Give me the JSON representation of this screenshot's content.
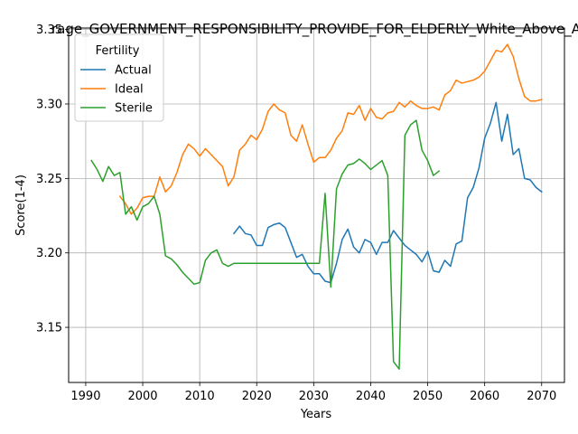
{
  "chart_data": {
    "type": "line",
    "title": "rage_GOVERNMENT_RESPONSIBILITY_PROVIDE_FOR_ELDERLY_White_Above_A",
    "xlabel": "Years",
    "ylabel": "Score(1-4)",
    "xlim": [
      1987,
      2074
    ],
    "ylim": [
      3.113,
      3.351
    ],
    "xticks": [
      1990,
      2000,
      2010,
      2020,
      2030,
      2040,
      2050,
      2060,
      2070
    ],
    "yticks": [
      3.15,
      3.2,
      3.25,
      3.3,
      3.35
    ],
    "ytick_labels": [
      "3.15",
      "3.20",
      "3.25",
      "3.30",
      "3.35"
    ],
    "grid": true,
    "legend": {
      "title": "Fertility",
      "placement": "top-left"
    },
    "series": [
      {
        "name": "Actual",
        "color": "#1f77b4",
        "points": [
          [
            2016,
            3.213
          ],
          [
            2017,
            3.218
          ],
          [
            2018,
            3.213
          ],
          [
            2019,
            3.212
          ],
          [
            2020,
            3.205
          ],
          [
            2021,
            3.205
          ],
          [
            2022,
            3.217
          ],
          [
            2023,
            3.219
          ],
          [
            2024,
            3.22
          ],
          [
            2025,
            3.217
          ],
          [
            2026,
            3.207
          ],
          [
            2027,
            3.197
          ],
          [
            2028,
            3.199
          ],
          [
            2029,
            3.191
          ],
          [
            2030,
            3.186
          ],
          [
            2031,
            3.186
          ],
          [
            2032,
            3.181
          ],
          [
            2033,
            3.18
          ],
          [
            2034,
            3.193
          ],
          [
            2035,
            3.209
          ],
          [
            2036,
            3.216
          ],
          [
            2037,
            3.204
          ],
          [
            2038,
            3.2
          ],
          [
            2039,
            3.209
          ],
          [
            2040,
            3.207
          ],
          [
            2041,
            3.199
          ],
          [
            2042,
            3.207
          ],
          [
            2043,
            3.207
          ],
          [
            2044,
            3.215
          ],
          [
            2045,
            3.21
          ],
          [
            2046,
            3.205
          ],
          [
            2047,
            3.202
          ],
          [
            2048,
            3.199
          ],
          [
            2049,
            3.194
          ],
          [
            2050,
            3.201
          ],
          [
            2051,
            3.188
          ],
          [
            2052,
            3.187
          ],
          [
            2053,
            3.195
          ],
          [
            2054,
            3.191
          ],
          [
            2055,
            3.206
          ],
          [
            2056,
            3.208
          ],
          [
            2057,
            3.237
          ],
          [
            2058,
            3.244
          ],
          [
            2059,
            3.257
          ],
          [
            2060,
            3.277
          ],
          [
            2061,
            3.287
          ],
          [
            2062,
            3.301
          ],
          [
            2063,
            3.275
          ],
          [
            2064,
            3.293
          ],
          [
            2065,
            3.266
          ],
          [
            2066,
            3.27
          ],
          [
            2067,
            3.25
          ],
          [
            2068,
            3.249
          ],
          [
            2069,
            3.244
          ],
          [
            2070,
            3.241
          ]
        ]
      },
      {
        "name": "Ideal",
        "color": "#ff7f0e",
        "points": [
          [
            1996,
            3.238
          ],
          [
            1997,
            3.233
          ],
          [
            1998,
            3.226
          ],
          [
            1999,
            3.23
          ],
          [
            2000,
            3.237
          ],
          [
            2001,
            3.238
          ],
          [
            2002,
            3.238
          ],
          [
            2003,
            3.251
          ],
          [
            2004,
            3.241
          ],
          [
            2005,
            3.245
          ],
          [
            2006,
            3.254
          ],
          [
            2007,
            3.266
          ],
          [
            2008,
            3.273
          ],
          [
            2009,
            3.27
          ],
          [
            2010,
            3.265
          ],
          [
            2011,
            3.27
          ],
          [
            2012,
            3.266
          ],
          [
            2013,
            3.262
          ],
          [
            2014,
            3.258
          ],
          [
            2015,
            3.245
          ],
          [
            2016,
            3.251
          ],
          [
            2017,
            3.269
          ],
          [
            2018,
            3.273
          ],
          [
            2019,
            3.279
          ],
          [
            2020,
            3.276
          ],
          [
            2021,
            3.283
          ],
          [
            2022,
            3.295
          ],
          [
            2023,
            3.3
          ],
          [
            2024,
            3.296
          ],
          [
            2025,
            3.294
          ],
          [
            2026,
            3.279
          ],
          [
            2027,
            3.275
          ],
          [
            2028,
            3.286
          ],
          [
            2029,
            3.273
          ],
          [
            2030,
            3.261
          ],
          [
            2031,
            3.264
          ],
          [
            2032,
            3.264
          ],
          [
            2033,
            3.269
          ],
          [
            2034,
            3.277
          ],
          [
            2035,
            3.282
          ],
          [
            2036,
            3.294
          ],
          [
            2037,
            3.293
          ],
          [
            2038,
            3.299
          ],
          [
            2039,
            3.289
          ],
          [
            2040,
            3.297
          ],
          [
            2041,
            3.291
          ],
          [
            2042,
            3.29
          ],
          [
            2043,
            3.294
          ],
          [
            2044,
            3.295
          ],
          [
            2045,
            3.301
          ],
          [
            2046,
            3.298
          ],
          [
            2047,
            3.302
          ],
          [
            2048,
            3.299
          ],
          [
            2049,
            3.297
          ],
          [
            2050,
            3.297
          ],
          [
            2051,
            3.298
          ],
          [
            2052,
            3.296
          ],
          [
            2053,
            3.306
          ],
          [
            2054,
            3.309
          ],
          [
            2055,
            3.316
          ],
          [
            2056,
            3.314
          ],
          [
            2057,
            3.315
          ],
          [
            2058,
            3.316
          ],
          [
            2059,
            3.318
          ],
          [
            2060,
            3.322
          ],
          [
            2061,
            3.329
          ],
          [
            2062,
            3.336
          ],
          [
            2063,
            3.335
          ],
          [
            2064,
            3.34
          ],
          [
            2065,
            3.332
          ],
          [
            2066,
            3.317
          ],
          [
            2067,
            3.305
          ],
          [
            2068,
            3.302
          ],
          [
            2069,
            3.302
          ],
          [
            2070,
            3.303
          ]
        ]
      },
      {
        "name": "Sterile",
        "color": "#2ca02c",
        "points": [
          [
            1991,
            3.262
          ],
          [
            1992,
            3.256
          ],
          [
            1993,
            3.248
          ],
          [
            1994,
            3.258
          ],
          [
            1995,
            3.252
          ],
          [
            1996,
            3.254
          ],
          [
            1997,
            3.226
          ],
          [
            1998,
            3.231
          ],
          [
            1999,
            3.222
          ],
          [
            2000,
            3.231
          ],
          [
            2001,
            3.233
          ],
          [
            2002,
            3.238
          ],
          [
            2003,
            3.226
          ],
          [
            2004,
            3.198
          ],
          [
            2005,
            3.196
          ],
          [
            2006,
            3.192
          ],
          [
            2007,
            3.187
          ],
          [
            2008,
            3.183
          ],
          [
            2009,
            3.179
          ],
          [
            2010,
            3.18
          ],
          [
            2011,
            3.195
          ],
          [
            2012,
            3.2
          ],
          [
            2013,
            3.202
          ],
          [
            2014,
            3.193
          ],
          [
            2015,
            3.191
          ],
          [
            2016,
            3.193
          ],
          [
            2017,
            3.193
          ],
          [
            2018,
            3.193
          ],
          [
            2019,
            3.193
          ],
          [
            2020,
            3.193
          ],
          [
            2021,
            3.193
          ],
          [
            2022,
            3.193
          ],
          [
            2023,
            3.193
          ],
          [
            2024,
            3.193
          ],
          [
            2025,
            3.193
          ],
          [
            2026,
            3.193
          ],
          [
            2027,
            3.193
          ],
          [
            2028,
            3.193
          ],
          [
            2029,
            3.193
          ],
          [
            2030,
            3.193
          ],
          [
            2031,
            3.193
          ],
          [
            2032,
            3.24
          ],
          [
            2033,
            3.177
          ],
          [
            2034,
            3.243
          ],
          [
            2035,
            3.253
          ],
          [
            2036,
            3.259
          ],
          [
            2037,
            3.26
          ],
          [
            2038,
            3.263
          ],
          [
            2039,
            3.26
          ],
          [
            2040,
            3.256
          ],
          [
            2041,
            3.259
          ],
          [
            2042,
            3.262
          ],
          [
            2043,
            3.252
          ],
          [
            2044,
            3.127
          ],
          [
            2045,
            3.122
          ],
          [
            2046,
            3.279
          ],
          [
            2047,
            3.286
          ],
          [
            2048,
            3.289
          ],
          [
            2049,
            3.269
          ],
          [
            2050,
            3.262
          ],
          [
            2051,
            3.252
          ],
          [
            2052,
            3.255
          ]
        ]
      }
    ]
  }
}
